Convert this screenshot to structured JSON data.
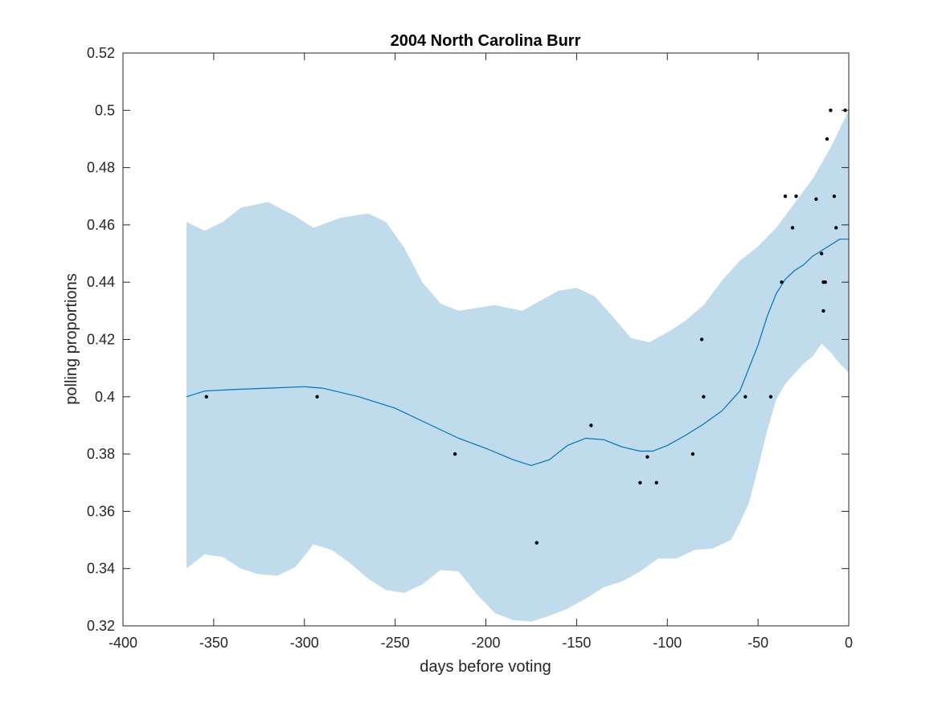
{
  "chart_data": {
    "type": "scatter",
    "title": "2004 North Carolina Burr",
    "xlabel": "days before voting",
    "ylabel": "polling proportions",
    "xlim": [
      -400,
      0
    ],
    "ylim": [
      0.32,
      0.52
    ],
    "xticks": [
      -400,
      -350,
      -300,
      -250,
      -200,
      -150,
      -100,
      -50,
      0
    ],
    "xtick_labels": [
      "-400",
      "-350",
      "-300",
      "-250",
      "-200",
      "-150",
      "-100",
      "-50",
      "0"
    ],
    "yticks": [
      0.32,
      0.34,
      0.36,
      0.38,
      0.4,
      0.42,
      0.44,
      0.46,
      0.48,
      0.5,
      0.52
    ],
    "ytick_labels": [
      "0.32",
      "0.34",
      "0.36",
      "0.38",
      "0.4",
      "0.42",
      "0.44",
      "0.46",
      "0.48",
      "0.5",
      "0.52"
    ],
    "grid": false,
    "colors": {
      "band": "#c0dcec",
      "line": "#0072bd",
      "points": "#000000",
      "axes": "#262626"
    },
    "polls": {
      "x": [
        -354,
        -293,
        -217,
        -172,
        -142,
        -115,
        -111,
        -106,
        -86,
        -81,
        -80,
        -57,
        -43,
        -37,
        -35,
        -31,
        -29,
        -18,
        -15,
        -14,
        -14,
        -13,
        -12,
        -10,
        -8,
        -7,
        -2
      ],
      "y": [
        0.4,
        0.4,
        0.38,
        0.349,
        0.39,
        0.37,
        0.379,
        0.37,
        0.38,
        0.42,
        0.4,
        0.4,
        0.4,
        0.44,
        0.47,
        0.459,
        0.47,
        0.469,
        0.45,
        0.43,
        0.44,
        0.44,
        0.49,
        0.5,
        0.47,
        0.459,
        0.5
      ]
    },
    "trend": {
      "x": [
        -365,
        -355,
        -340,
        -320,
        -300,
        -290,
        -270,
        -250,
        -230,
        -215,
        -200,
        -185,
        -175,
        -165,
        -155,
        -145,
        -135,
        -125,
        -115,
        -108,
        -100,
        -90,
        -80,
        -70,
        -60,
        -50,
        -45,
        -40,
        -35,
        -30,
        -25,
        -20,
        -15,
        -10,
        -5,
        0
      ],
      "y": [
        0.4,
        0.402,
        0.4025,
        0.403,
        0.4035,
        0.403,
        0.4,
        0.396,
        0.39,
        0.3855,
        0.382,
        0.378,
        0.376,
        0.378,
        0.383,
        0.3855,
        0.385,
        0.3825,
        0.381,
        0.381,
        0.383,
        0.3865,
        0.3905,
        0.395,
        0.402,
        0.418,
        0.428,
        0.436,
        0.441,
        0.444,
        0.446,
        0.449,
        0.451,
        0.453,
        0.455,
        0.455
      ]
    },
    "band_upper": {
      "x": [
        -365,
        -355,
        -345,
        -335,
        -320,
        -305,
        -295,
        -280,
        -265,
        -255,
        -245,
        -235,
        -225,
        -215,
        -205,
        -195,
        -180,
        -170,
        -160,
        -150,
        -140,
        -130,
        -120,
        -110,
        -100,
        -90,
        -80,
        -70,
        -60,
        -50,
        -40,
        -30,
        -20,
        -10,
        0
      ],
      "y": [
        0.461,
        0.458,
        0.461,
        0.466,
        0.468,
        0.463,
        0.459,
        0.4625,
        0.464,
        0.461,
        0.452,
        0.44,
        0.4325,
        0.43,
        0.431,
        0.432,
        0.43,
        0.4335,
        0.437,
        0.438,
        0.435,
        0.428,
        0.4205,
        0.419,
        0.4225,
        0.4265,
        0.432,
        0.4405,
        0.4475,
        0.4525,
        0.459,
        0.4675,
        0.476,
        0.487,
        0.5
      ]
    },
    "band_lower": {
      "x": [
        -365,
        -355,
        -345,
        -335,
        -325,
        -315,
        -305,
        -295,
        -285,
        -275,
        -265,
        -255,
        -245,
        -235,
        -225,
        -215,
        -205,
        -195,
        -185,
        -175,
        -165,
        -155,
        -145,
        -135,
        -125,
        -115,
        -105,
        -95,
        -85,
        -75,
        -65,
        -60,
        -55,
        -50,
        -45,
        -40,
        -35,
        -30,
        -25,
        -20,
        -15,
        -10,
        -5,
        0
      ],
      "y": [
        0.34,
        0.345,
        0.344,
        0.34,
        0.338,
        0.3375,
        0.3405,
        0.3485,
        0.3465,
        0.342,
        0.3365,
        0.3325,
        0.3315,
        0.3345,
        0.3395,
        0.339,
        0.331,
        0.3245,
        0.322,
        0.3215,
        0.3235,
        0.326,
        0.3295,
        0.3335,
        0.3355,
        0.339,
        0.3435,
        0.3435,
        0.3465,
        0.347,
        0.35,
        0.356,
        0.363,
        0.375,
        0.388,
        0.399,
        0.4045,
        0.408,
        0.4115,
        0.414,
        0.4185,
        0.4155,
        0.4115,
        0.4085
      ]
    }
  }
}
